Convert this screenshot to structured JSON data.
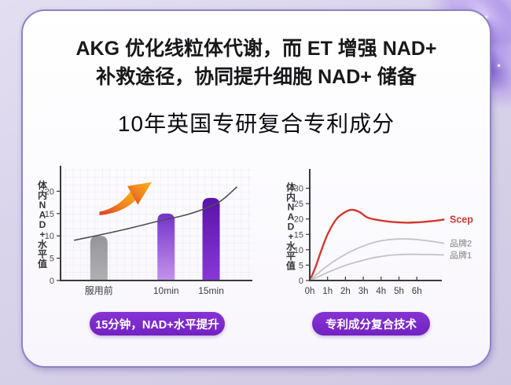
{
  "header": {
    "title_lines": [
      "AKG 优化线粒体代谢，而 ET 增强 NAD+",
      "补救途径，协同提升细胞 NAD+ 储备"
    ],
    "subtitle": "10年英国专研复合专利成分"
  },
  "badges": {
    "left": "15分钟，NAD+水平提升",
    "right": "专利成分复合技术"
  },
  "colors": {
    "background": "#d7d2e8",
    "card_bg": "#fbfafd",
    "card_border": "#8e82c5",
    "badge_purple": "#7a28c8",
    "title_text": "#18181b",
    "axis": "#3a3a3e",
    "tick_text": "#4a4a50",
    "grid": "#ece8f1",
    "trend_line": "#4e4e52",
    "arrow_gradient": [
      "#e03c2a",
      "#f0861e",
      "#f8b31a"
    ],
    "bar_gradients": {
      "gray": [
        "#96969a",
        "#b0b0b3"
      ],
      "purpleLight": [
        "#7433cb",
        "#c393ec"
      ],
      "purpleDark": [
        "#5a13aa",
        "#8838d6"
      ]
    },
    "legend_gray_text": "#7f7f85"
  },
  "chart_data": [
    {
      "id": "bar-chart",
      "type": "bar",
      "title": "",
      "ylabel": "体内NAD+水平值",
      "categories": [
        "服用前",
        "10min",
        "15min"
      ],
      "values": [
        10,
        15,
        18.5
      ],
      "bar_styles": [
        "gray",
        "purpleLight",
        "purpleDark"
      ],
      "yticks": [
        0,
        5,
        10,
        15,
        20
      ],
      "ylim": [
        0,
        25
      ],
      "grid": true,
      "trend": {
        "x_frac": [
          0.07,
          0.31,
          0.51,
          0.67,
          0.82,
          0.92
        ],
        "values": [
          9.0,
          11.2,
          13.3,
          14.9,
          17.4,
          21.0
        ]
      },
      "annotation": "growth-arrow"
    },
    {
      "id": "line-chart",
      "type": "line",
      "title": "",
      "ylabel": "体内NAD+水平值",
      "xticks": [
        "0h",
        "1h",
        "2h",
        "3h",
        "4h",
        "5h",
        "6h"
      ],
      "yticks": [
        0,
        5,
        10,
        15,
        20,
        25,
        30
      ],
      "ylim": [
        0,
        35
      ],
      "xlim": [
        0,
        7.5
      ],
      "grid": false,
      "legend_position": "right-of-line-end",
      "series": [
        {
          "name": "Scep",
          "color": "#d03a30",
          "width": 2.4,
          "x": [
            0,
            0.3,
            0.6,
            1,
            1.5,
            2,
            2.4,
            2.8,
            3.2,
            3.6,
            4,
            4.5,
            5,
            5.5,
            6,
            6.5,
            7,
            7.5
          ],
          "y": [
            0,
            4,
            9,
            15,
            20,
            22.3,
            23,
            22.2,
            20.6,
            19.9,
            19.5,
            19.1,
            18.9,
            18.8,
            18.9,
            19.1,
            19.4,
            19.8
          ]
        },
        {
          "name": "品牌2",
          "color": "#c3c3c7",
          "width": 1.8,
          "x": [
            0,
            0.5,
            1,
            1.5,
            2,
            2.5,
            3,
            3.5,
            4,
            4.5,
            5,
            5.5,
            6,
            6.5,
            7,
            7.5
          ],
          "y": [
            0,
            2.5,
            4.8,
            6.8,
            8.5,
            10,
            11.2,
            12.2,
            12.9,
            13.3,
            13.5,
            13.5,
            13.3,
            13,
            12.6,
            12.1
          ]
        },
        {
          "name": "品牌1",
          "color": "#c3c3c7",
          "width": 1.8,
          "x": [
            0,
            0.5,
            1,
            1.5,
            2,
            2.5,
            3,
            3.5,
            4,
            4.5,
            5,
            5.5,
            6,
            6.5,
            7,
            7.5
          ],
          "y": [
            0,
            1.3,
            2.6,
            3.8,
            4.9,
            5.8,
            6.6,
            7.3,
            7.8,
            8.2,
            8.4,
            8.5,
            8.5,
            8.45,
            8.4,
            8.3
          ]
        }
      ]
    }
  ]
}
